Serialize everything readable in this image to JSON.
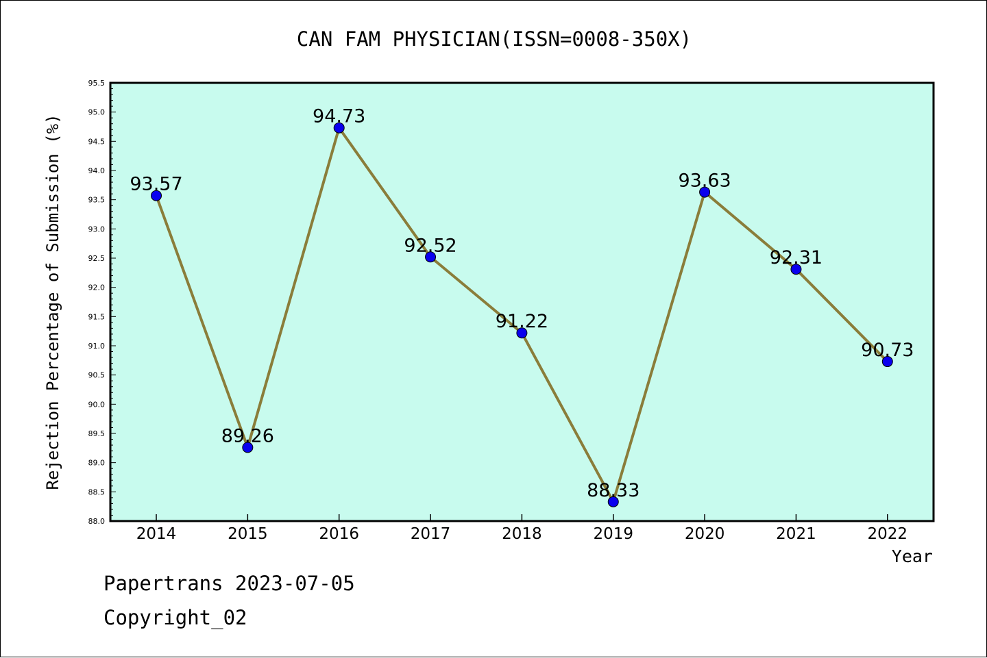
{
  "colors": {
    "plot_background": "#c8fbee",
    "line": "#8a7d3a",
    "marker": "#0a00ee",
    "text": "#000000"
  },
  "chart_data": {
    "type": "line",
    "title": "CAN FAM PHYSICIAN(ISSN=0008-350X)",
    "xlabel": "Year",
    "ylabel": "Rejection Percentage of Submission (%)",
    "categories": [
      "2014",
      "2015",
      "2016",
      "2017",
      "2018",
      "2019",
      "2020",
      "2021",
      "2022"
    ],
    "series": [
      {
        "values": [
          93.57,
          89.26,
          94.73,
          92.52,
          91.22,
          88.33,
          93.63,
          92.31,
          90.73
        ]
      }
    ],
    "data_labels": [
      "93.57",
      "89.26",
      "94.73",
      "92.52",
      "91.22",
      "88.33",
      "93.63",
      "92.31",
      "90.73"
    ],
    "ylim": [
      88.0,
      95.5
    ],
    "yticks": [
      "88.0",
      "88.5",
      "89.0",
      "89.5",
      "90.0",
      "90.5",
      "91.0",
      "91.5",
      "92.0",
      "92.5",
      "93.0",
      "93.5",
      "94.0",
      "94.5",
      "95.0",
      "95.5"
    ],
    "grid": false,
    "legend": "none"
  },
  "footer": {
    "line1": "Papertrans 2023-07-05",
    "line2": "Copyright_02"
  }
}
